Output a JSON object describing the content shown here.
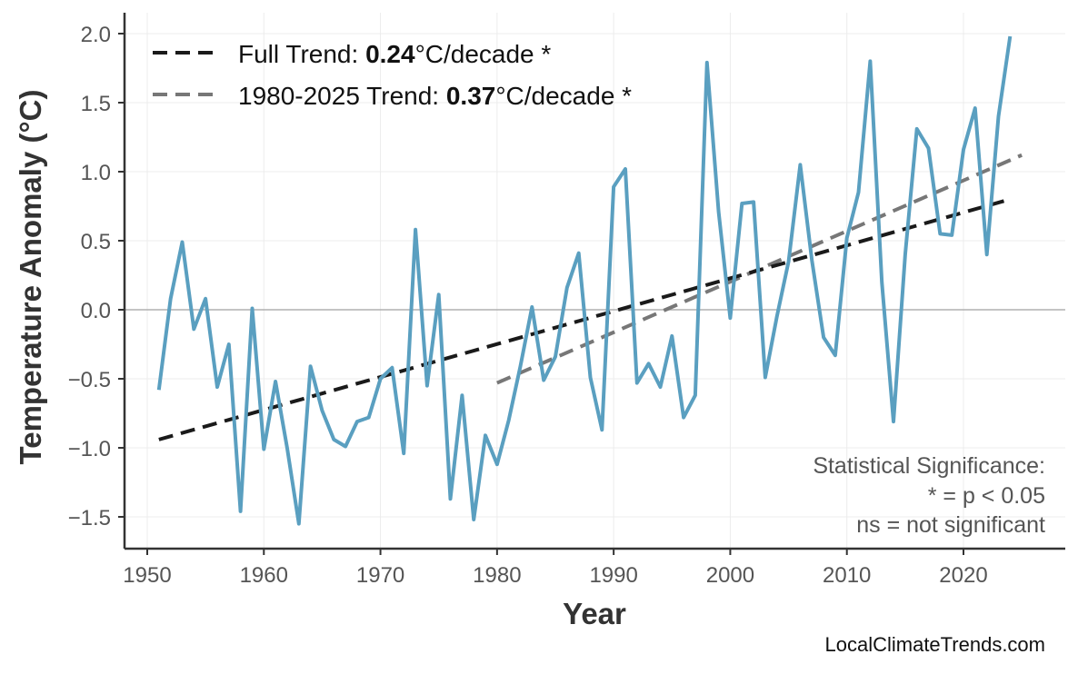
{
  "chart_data": {
    "type": "line",
    "xlabel": "Year",
    "ylabel": "Temperature Anomaly (°C)",
    "xlim": [
      1948,
      2029
    ],
    "ylim": [
      -1.7,
      2.1
    ],
    "xticks": [
      1950,
      1960,
      1970,
      1980,
      1990,
      2000,
      2010,
      2020
    ],
    "yticks": [
      2.0,
      1.5,
      1.0,
      0.5,
      0.0,
      -0.5,
      -1.0,
      -1.5
    ],
    "ytick_labels": [
      "2.0",
      "1.5",
      "1.0",
      "0.5",
      "0.0",
      "−0.5",
      "−1.0",
      "−1.5"
    ],
    "grid": true,
    "legend_placement": "top-left",
    "colors": {
      "series": "#5a9fc0",
      "full_trend": "#1a1a1a",
      "recent_trend": "#777777",
      "zero_line": "#b0b0b0"
    },
    "series": [
      {
        "x": [
          1951,
          1952,
          1953,
          1954,
          1955,
          1956,
          1957,
          1958,
          1959,
          1960,
          1961,
          1962,
          1963,
          1964,
          1965,
          1966,
          1967,
          1968,
          1969,
          1970,
          1971,
          1972,
          1973,
          1974,
          1975,
          1976,
          1977,
          1978,
          1979,
          1980,
          1981,
          1982,
          1983,
          1984,
          1985,
          1986,
          1987,
          1988,
          1989,
          1990,
          1991,
          1992,
          1993,
          1994,
          1995,
          1996,
          1997,
          1998,
          1999,
          2000,
          2001,
          2002,
          2003,
          2004,
          2005,
          2006,
          2007,
          2008,
          2009,
          2010,
          2011,
          2012,
          2013,
          2014,
          2015,
          2016,
          2017,
          2018,
          2019,
          2020,
          2021,
          2022,
          2023,
          2024
        ],
        "values": [
          -0.58,
          0.08,
          0.49,
          -0.14,
          0.08,
          -0.56,
          -0.25,
          -1.46,
          0.01,
          -1.01,
          -0.52,
          -1.0,
          -1.55,
          -0.41,
          -0.73,
          -0.94,
          -0.99,
          -0.81,
          -0.78,
          -0.5,
          -0.42,
          -1.04,
          0.58,
          -0.55,
          0.11,
          -1.37,
          -0.62,
          -1.52,
          -0.91,
          -1.12,
          -0.8,
          -0.41,
          0.02,
          -0.51,
          -0.34,
          0.16,
          0.41,
          -0.49,
          -0.87,
          0.89,
          1.02,
          -0.53,
          -0.39,
          -0.56,
          -0.19,
          -0.78,
          -0.62,
          1.79,
          0.71,
          -0.06,
          0.77,
          0.78,
          -0.49,
          -0.05,
          0.35,
          1.05,
          0.36,
          -0.2,
          -0.33,
          0.52,
          0.85,
          1.8,
          0.2,
          -0.81,
          0.4,
          1.31,
          1.17,
          0.55,
          0.54,
          1.16,
          1.46,
          0.4,
          1.4,
          1.98
        ]
      }
    ],
    "trends": [
      {
        "prefix": "Full Trend: ",
        "value": "0.24",
        "suffix": "°C/decade *",
        "x": [
          1951,
          2024
        ],
        "y": [
          -0.94,
          0.8
        ]
      },
      {
        "prefix": "1980-2025 Trend: ",
        "value": "0.37",
        "suffix": "°C/decade *",
        "x": [
          1980,
          2025
        ],
        "y": [
          -0.53,
          1.12
        ]
      }
    ],
    "annotation": [
      "Statistical Significance:",
      "* = p < 0.05",
      "ns = not significant"
    ],
    "watermark": "LocalClimateTrends.com"
  }
}
